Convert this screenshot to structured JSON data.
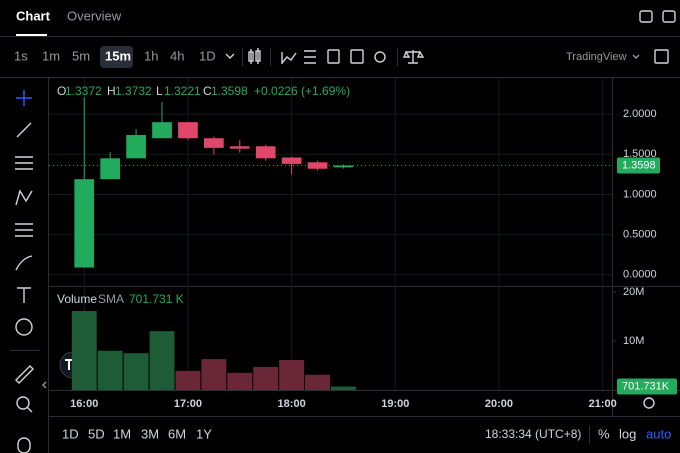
{
  "tabs": [
    "Chart",
    "Overview"
  ],
  "intervals": [
    "1s",
    "1m",
    "5m",
    "15m",
    "1h",
    "4h",
    "1D"
  ],
  "provider": "TradingView",
  "ohlc_labels": [
    "O",
    "H",
    "L",
    "C"
  ],
  "change": "+0.0226 (+1.69%)",
  "volume_title": "Volume",
  "volume_indicator": "SMA",
  "ranges": [
    "1D",
    "5D",
    "1M",
    "3M",
    "6M",
    "1Y"
  ],
  "clock": "18:33:34 (UTC+8)",
  "scale_options": [
    "%",
    "log",
    "auto"
  ],
  "chart_data": {
    "type": "candlestick",
    "x": [
      16,
      16.25,
      16.5,
      16.75,
      17,
      17.25,
      17.5,
      17.75,
      18,
      18.25,
      18.5
    ],
    "open": [
      0.09,
      1.19,
      1.45,
      1.7,
      1.9,
      1.7,
      1.6,
      1.6,
      1.46,
      1.4,
      1.3372
    ],
    "high": [
      2.21,
      1.53,
      1.81,
      2.15,
      1.9,
      1.72,
      1.68,
      1.62,
      1.47,
      1.42,
      1.3732
    ],
    "low": [
      0.09,
      1.19,
      1.45,
      1.7,
      1.68,
      1.5,
      1.52,
      1.42,
      1.25,
      1.3,
      1.3221
    ],
    "close": [
      1.19,
      1.45,
      1.74,
      1.9,
      1.7,
      1.58,
      1.57,
      1.45,
      1.38,
      1.32,
      1.3598
    ],
    "volume": [
      16100000,
      8000000,
      7500000,
      12000000,
      3900000,
      6300000,
      3500000,
      4700000,
      6100000,
      3100000,
      701731
    ],
    "last_volume_labels": [
      "701.731 K",
      "701.731K"
    ],
    "up_color": "#22ab5c",
    "down_color": "#e0476b",
    "volume_up_color": "#1d5c37",
    "volume_down_color": "#6a2738",
    "xlim": [
      15.66,
      21.09
    ],
    "xticks": [
      {
        "value": 16,
        "label": "16:00"
      },
      {
        "value": 17,
        "label": "17:00"
      },
      {
        "value": 18,
        "label": "18:00"
      },
      {
        "value": 19,
        "label": "19:00"
      },
      {
        "value": 20,
        "label": "20:00"
      },
      {
        "value": 21,
        "label": "21:00"
      }
    ],
    "ylim": [
      -0.14,
      2.45
    ],
    "yticks": [
      {
        "value": 2,
        "label": "2.0000"
      },
      {
        "value": 1.5,
        "label": "1.5000"
      },
      {
        "value": 1,
        "label": "1.0000"
      },
      {
        "value": 0.5,
        "label": "0.5000"
      },
      {
        "value": 0,
        "label": "0.0000"
      }
    ],
    "volume_lim": [
      0,
      21000000
    ],
    "volume_ticks": [
      {
        "value": 20000000,
        "label": "20M"
      },
      {
        "value": 10000000,
        "label": "10M"
      }
    ],
    "grid": true
  }
}
